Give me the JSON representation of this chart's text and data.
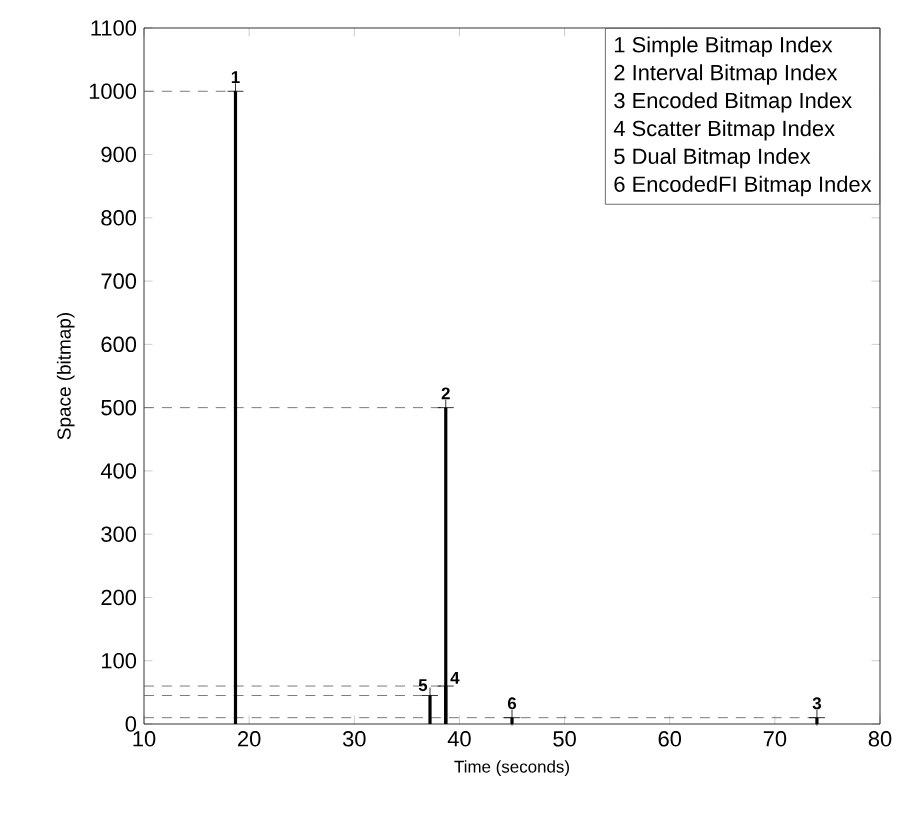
{
  "chart_data": {
    "type": "lollipop",
    "xlabel": "Time (seconds)",
    "ylabel": "Space (bitmap)",
    "series": [
      {
        "color": "#000000",
        "marker": "cross",
        "x": [
          18.7,
          38.7,
          74,
          38.7,
          37.2,
          45
        ],
        "values": [
          1000,
          500,
          10,
          60,
          45,
          10
        ]
      },
      {
        "type": "line",
        "color": "#595959",
        "line_style": "dashed",
        "x": [
          10,
          18.7
        ],
        "values": [
          1000,
          1000
        ]
      },
      {
        "type": "line",
        "color": "#595959",
        "line_style": "dashed",
        "x": [
          10,
          38.7
        ],
        "values": [
          500,
          500
        ]
      },
      {
        "type": "line",
        "color": "#595959",
        "line_style": "dashed",
        "x": [
          10,
          38.7
        ],
        "values": [
          60,
          60
        ]
      },
      {
        "type": "line",
        "color": "#595959",
        "line_style": "dashed",
        "x": [
          10,
          37.2
        ],
        "values": [
          45,
          45
        ]
      },
      {
        "type": "line",
        "color": "#595959",
        "line_style": "dashed",
        "x": [
          10,
          74
        ],
        "values": [
          10,
          10
        ]
      }
    ],
    "xlim": [
      10,
      80
    ],
    "xticks": [
      10,
      20,
      30,
      40,
      50,
      60,
      70,
      80
    ],
    "ylim": [
      0,
      1100
    ],
    "yticks": [
      0,
      100,
      200,
      300,
      400,
      500,
      600,
      700,
      800,
      900,
      1000,
      1100
    ],
    "annotations": [
      {
        "text": "1",
        "x": 18.7,
        "y": 1000
      },
      {
        "text": "2",
        "x": 38.7,
        "y": 500
      },
      {
        "text": "3",
        "x": 74,
        "y": 10
      },
      {
        "text": "4",
        "x": 38.7,
        "y": 60
      },
      {
        "text": "5",
        "x": 37.2,
        "y": 45
      },
      {
        "text": "6",
        "x": 45,
        "y": 10
      },
      "1 Simple Bitmap Index",
      "2 Interval Bitmap Index",
      "3 Encoded Bitmap Index",
      "4 Scatter Bitmap Index",
      "5 Dual Bitmap Index",
      "6 EncodedFI Bitmap Index"
    ]
  }
}
